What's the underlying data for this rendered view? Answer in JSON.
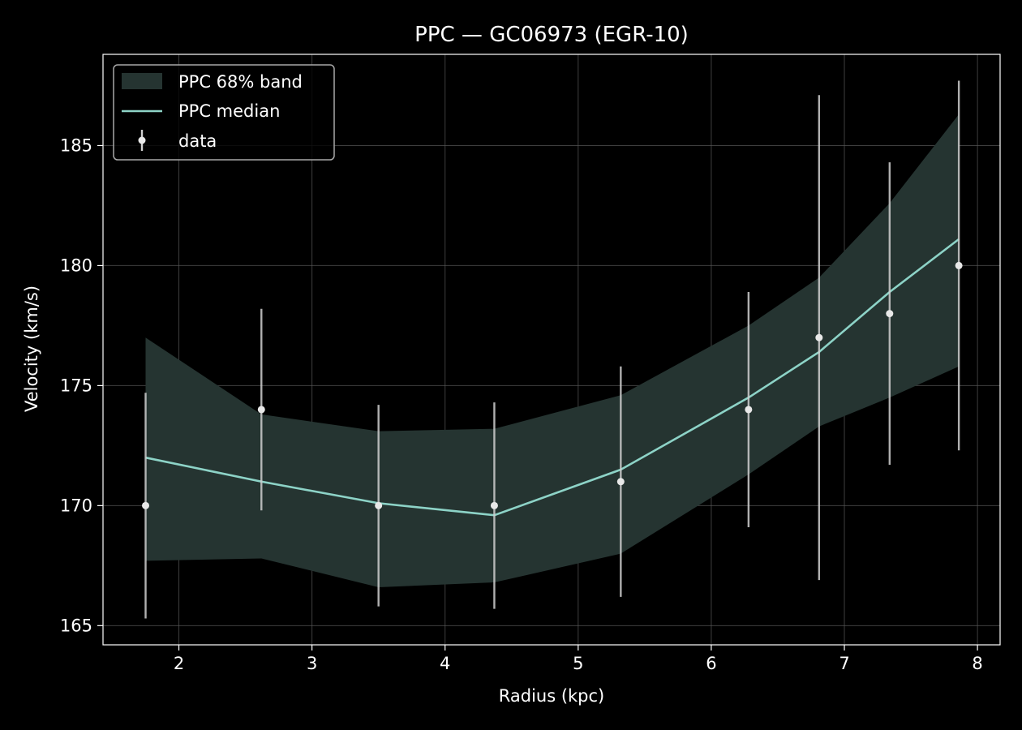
{
  "chart_data": {
    "type": "line",
    "title": "PPC — GC06973 (EGR-10)",
    "xlabel": "Radius (kpc)",
    "ylabel": "Velocity (km/s)",
    "xlim": [
      1.43,
      8.17
    ],
    "ylim": [
      164.2,
      188.8
    ],
    "xticks": [
      2,
      3,
      4,
      5,
      6,
      7,
      8
    ],
    "yticks": [
      165,
      170,
      175,
      180,
      185
    ],
    "grid": true,
    "legend_position": "top-left",
    "colors": {
      "background": "#000000",
      "band": "#253431",
      "median": "#8dd3c7",
      "data": "#e8e8e8",
      "errorbar": "#cfcfcf",
      "grid": "#5a5a5a",
      "axes": "#ffffff"
    },
    "band": {
      "name": "PPC 68% band",
      "x": [
        1.75,
        2.62,
        3.5,
        4.37,
        5.32,
        6.28,
        6.81,
        7.34,
        7.86
      ],
      "lower": [
        167.7,
        167.8,
        166.6,
        166.8,
        168.0,
        171.3,
        173.3,
        174.5,
        175.8
      ],
      "upper": [
        177.0,
        173.8,
        173.1,
        173.2,
        174.6,
        177.5,
        179.5,
        182.6,
        186.3
      ]
    },
    "median": {
      "name": "PPC median",
      "x": [
        1.75,
        2.62,
        3.5,
        4.37,
        5.32,
        6.28,
        6.81,
        7.34,
        7.86
      ],
      "y": [
        172.0,
        171.0,
        170.1,
        169.6,
        171.5,
        174.5,
        176.4,
        178.9,
        181.1
      ]
    },
    "data": {
      "name": "data",
      "x": [
        1.75,
        2.62,
        3.5,
        4.37,
        5.32,
        6.28,
        6.81,
        7.34,
        7.86
      ],
      "y": [
        170,
        174,
        170,
        170,
        171,
        174,
        177,
        178,
        180
      ],
      "err": [
        4.7,
        4.2,
        4.2,
        4.3,
        4.8,
        4.9,
        10.1,
        6.3,
        7.7
      ]
    }
  }
}
